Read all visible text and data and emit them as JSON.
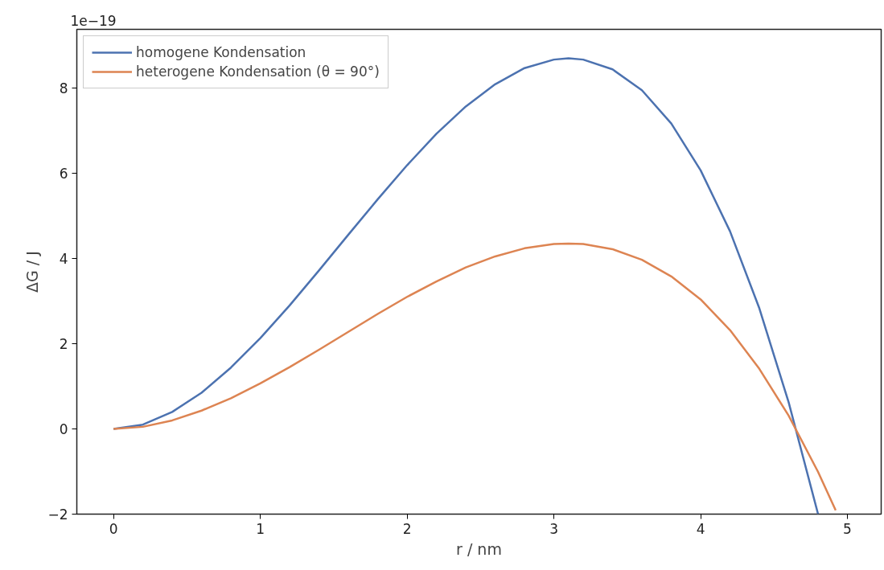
{
  "chart_data": {
    "type": "line",
    "xlabel": "r / nm",
    "ylabel": "ΔG / J",
    "annotations": [
      "1e−19"
    ],
    "xlim": [
      -0.25,
      5.23
    ],
    "ylim": [
      -2,
      9.38
    ],
    "xticks": [
      0,
      1,
      2,
      3,
      4,
      5
    ],
    "yticks": [
      -2,
      0,
      2,
      4,
      6,
      8
    ],
    "grid": false,
    "legend": "top left",
    "line_style": "solid",
    "marker": "none",
    "series": [
      {
        "name": "homogene Kondensation",
        "color": "#4c72b0",
        "x": [
          0,
          0.2,
          0.4,
          0.6,
          0.8,
          1.0,
          1.2,
          1.4,
          1.6,
          1.8,
          2.0,
          2.2,
          2.4,
          2.6,
          2.8,
          3.0,
          3.1,
          3.2,
          3.4,
          3.6,
          3.8,
          4.0,
          4.2,
          4.4,
          4.6,
          4.8
        ],
        "values": [
          0,
          0.1,
          0.4,
          0.85,
          1.44,
          2.13,
          2.9,
          3.72,
          4.56,
          5.39,
          6.19,
          6.93,
          7.57,
          8.09,
          8.47,
          8.67,
          8.7,
          8.67,
          8.44,
          7.95,
          7.17,
          6.07,
          4.64,
          2.83,
          0.62,
          -2.0
        ]
      },
      {
        "name": "heterogene Kondensation (θ = 90°)",
        "color": "#dd8452",
        "x": [
          0,
          0.2,
          0.4,
          0.6,
          0.8,
          1.0,
          1.2,
          1.4,
          1.6,
          1.8,
          2.0,
          2.2,
          2.4,
          2.6,
          2.8,
          3.0,
          3.1,
          3.2,
          3.4,
          3.6,
          3.8,
          4.0,
          4.2,
          4.4,
          4.6,
          4.8,
          4.92
        ],
        "values": [
          0,
          0.05,
          0.2,
          0.43,
          0.72,
          1.07,
          1.45,
          1.86,
          2.28,
          2.7,
          3.1,
          3.46,
          3.79,
          4.05,
          4.24,
          4.34,
          4.35,
          4.34,
          4.22,
          3.97,
          3.58,
          3.04,
          2.32,
          1.41,
          0.31,
          -1.01,
          -1.91
        ]
      }
    ]
  }
}
